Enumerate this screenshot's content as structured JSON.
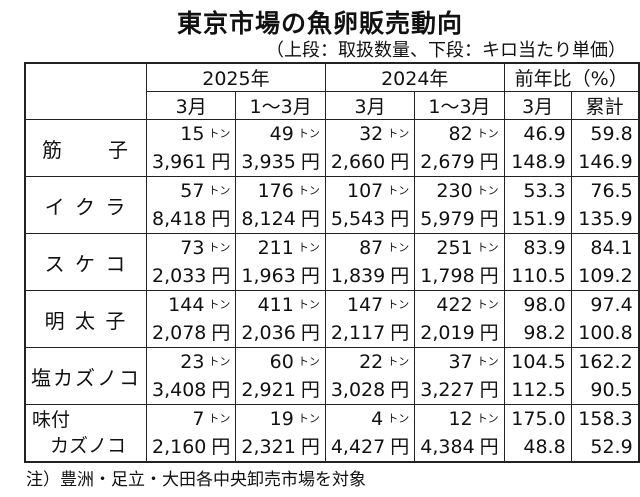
{
  "title": "東京市場の魚卵販売動向",
  "subtitle": "（上段：取扱数量、下段：キロ当たり単価）",
  "headers": {
    "y2025": "2025年",
    "y2024": "2024年",
    "yoy": "前年比（%）",
    "m3": "3月",
    "m13": "1～3月",
    "cum": "累計"
  },
  "units": {
    "ton": "トン",
    "yen": "円"
  },
  "rows": [
    {
      "name": "筋　　子",
      "vol": [
        "15",
        "49",
        "32",
        "82",
        "46.9",
        "59.8"
      ],
      "price": [
        "3,961",
        "3,935",
        "2,660",
        "2,679",
        "148.9",
        "146.9"
      ]
    },
    {
      "name": "イ ク ラ",
      "vol": [
        "57",
        "176",
        "107",
        "230",
        "53.3",
        "76.5"
      ],
      "price": [
        "8,418",
        "8,124",
        "5,543",
        "5,979",
        "151.9",
        "135.9"
      ]
    },
    {
      "name": "ス ケ コ",
      "vol": [
        "73",
        "211",
        "87",
        "251",
        "83.9",
        "84.1"
      ],
      "price": [
        "2,033",
        "1,963",
        "1,839",
        "1,798",
        "110.5",
        "109.2"
      ]
    },
    {
      "name": "明 太 子",
      "vol": [
        "144",
        "411",
        "147",
        "422",
        "98.0",
        "97.4"
      ],
      "price": [
        "2,078",
        "2,036",
        "2,117",
        "2,019",
        "98.2",
        "100.8"
      ]
    },
    {
      "name": "塩カズノコ",
      "vol": [
        "23",
        "60",
        "22",
        "37",
        "104.5",
        "162.2"
      ],
      "price": [
        "3,408",
        "2,921",
        "3,028",
        "3,227",
        "112.5",
        "90.5"
      ]
    },
    {
      "name": "味付",
      "name2": "カズノコ",
      "vol": [
        "7",
        "19",
        "4",
        "12",
        "175.0",
        "158.3"
      ],
      "price": [
        "2,160",
        "2,321",
        "4,427",
        "4,384",
        "48.8",
        "52.9"
      ]
    }
  ],
  "note": "注）豊洲・足立・大田各中央卸売市場を対象"
}
